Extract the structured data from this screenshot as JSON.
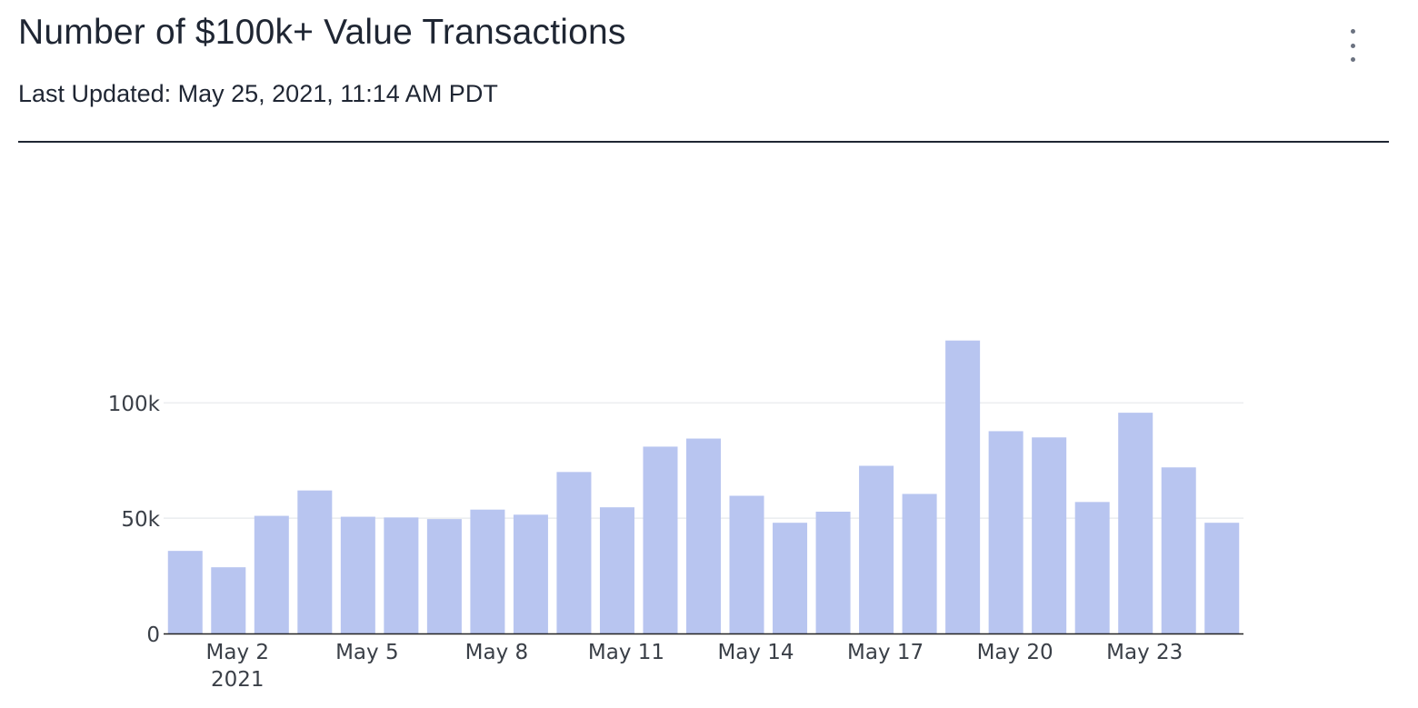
{
  "card": {
    "title": "Number of $100k+ Value Transactions",
    "last_updated": "Last Updated: May 25, 2021, 11:14 AM PDT",
    "more_menu_icon": "vertical-ellipsis-icon"
  },
  "colors": {
    "bar": "#b8c5f0",
    "grid": "#e6e8ec",
    "axis": "#222222",
    "tick_text": "#3a3f47"
  },
  "chart_data": {
    "type": "bar",
    "title": "Number of $100k+ Value Transactions",
    "xlabel": "",
    "ylabel": "",
    "categories": [
      "2021-05-01",
      "2021-05-02",
      "2021-05-03",
      "2021-05-04",
      "2021-05-05",
      "2021-05-06",
      "2021-05-07",
      "2021-05-08",
      "2021-05-09",
      "2021-05-10",
      "2021-05-11",
      "2021-05-12",
      "2021-05-13",
      "2021-05-14",
      "2021-05-15",
      "2021-05-16",
      "2021-05-17",
      "2021-05-18",
      "2021-05-19",
      "2021-05-20",
      "2021-05-21",
      "2021-05-22",
      "2021-05-23",
      "2021-05-24",
      "2021-05-25"
    ],
    "values": [
      35800,
      28700,
      51000,
      62000,
      50600,
      50300,
      49600,
      53700,
      51500,
      70000,
      54700,
      81000,
      84500,
      59700,
      48000,
      52800,
      72700,
      60500,
      127000,
      87700,
      85000,
      57000,
      95700,
      72000,
      48000
    ],
    "ylim": [
      0,
      150000
    ],
    "yticks": [
      {
        "value": 0,
        "label": "0"
      },
      {
        "value": 50000,
        "label": "50k"
      },
      {
        "value": 100000,
        "label": "100k"
      }
    ],
    "xticks": [
      {
        "date": "2021-05-02",
        "label": "May 2",
        "sublabel": "2021"
      },
      {
        "date": "2021-05-05",
        "label": "May 5",
        "sublabel": ""
      },
      {
        "date": "2021-05-08",
        "label": "May 8",
        "sublabel": ""
      },
      {
        "date": "2021-05-11",
        "label": "May 11",
        "sublabel": ""
      },
      {
        "date": "2021-05-14",
        "label": "May 14",
        "sublabel": ""
      },
      {
        "date": "2021-05-17",
        "label": "May 17",
        "sublabel": ""
      },
      {
        "date": "2021-05-20",
        "label": "May 20",
        "sublabel": ""
      },
      {
        "date": "2021-05-23",
        "label": "May 23",
        "sublabel": ""
      }
    ],
    "grid": true,
    "legend": "none"
  }
}
